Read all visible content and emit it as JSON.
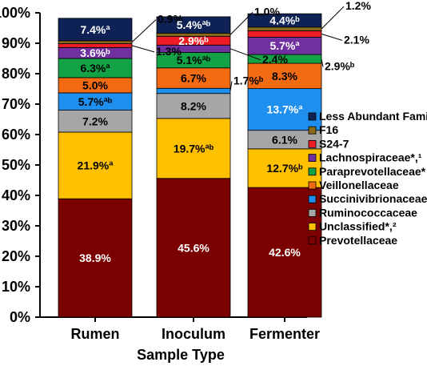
{
  "chart_data": {
    "type": "bar",
    "stacked": true,
    "xlabel": "Sample Type",
    "ylabel": "",
    "ylim": [
      0,
      100
    ],
    "y_ticks": [
      "0%",
      "10%",
      "20%",
      "30%",
      "40%",
      "50%",
      "60%",
      "70%",
      "80%",
      "90%",
      "100%"
    ],
    "categories": [
      "Rumen",
      "Inoculum",
      "Fermenter"
    ],
    "legend_position": "right",
    "series": [
      {
        "name": "Prevotellaceae",
        "color": "#7b0000",
        "values": [
          38.9,
          45.6,
          42.6
        ],
        "labels": [
          "38.9%",
          "45.6%",
          "42.6%"
        ],
        "label_color": "#ffffff"
      },
      {
        "name": "Unclassified*,²",
        "color": "#ffc000",
        "values": [
          21.9,
          19.7,
          12.7
        ],
        "labels": [
          "21.9%ª",
          "19.7%ªᵇ",
          "12.7%ᵇ"
        ],
        "label_color": "#000000"
      },
      {
        "name": "Ruminococcaceae",
        "color": "#a6a6a6",
        "values": [
          7.2,
          8.2,
          6.1
        ],
        "labels": [
          "7.2%",
          "8.2%",
          "6.1%"
        ],
        "label_color": "#000000"
      },
      {
        "name": "Succinivibrionaceae",
        "color": "#1f8fef",
        "values": [
          5.7,
          1.7,
          13.7
        ],
        "labels": [
          "5.7%ªᵇ",
          "1.7%ᵇ",
          "13.7%ª"
        ],
        "label_color": "#000000",
        "label_colors": [
          "#000000",
          "#000000",
          "#ffffff"
        ],
        "outside": [
          false,
          true,
          false
        ]
      },
      {
        "name": "Veillonellaceae",
        "color": "#f26b12",
        "values": [
          5.0,
          6.7,
          8.3
        ],
        "labels": [
          "5.0%",
          "6.7%",
          "8.3%"
        ],
        "label_color": "#000000",
        "outside": [
          false,
          false,
          false
        ]
      },
      {
        "name": "Paraprevotellaceae*",
        "color": "#13a346",
        "values": [
          6.3,
          5.1,
          2.9
        ],
        "labels": [
          "6.3%ª",
          "5.1%ªᵇ",
          "2.9%ᵇ"
        ],
        "label_color": "#000000",
        "outside": [
          false,
          false,
          true
        ]
      },
      {
        "name": "Lachnospiraceae*,¹",
        "color": "#7030a0",
        "values": [
          3.6,
          2.4,
          5.7
        ],
        "labels": [
          "3.6%ᵇ",
          "2.4%",
          "5.7%ª"
        ],
        "label_color": "#ffffff",
        "outside": [
          false,
          true,
          false
        ]
      },
      {
        "name": "S24-7",
        "color": "#ee1c25",
        "values": [
          1.3,
          2.9,
          2.1
        ],
        "labels": [
          "1.3%",
          "2.9%ᵇ",
          "2.1%"
        ],
        "label_color": "#ffffff",
        "outside": [
          true,
          false,
          true
        ]
      },
      {
        "name": "F16",
        "color": "#8a6d1c",
        "values": [
          0.9,
          1.0,
          1.2
        ],
        "labels": [
          "0.9%",
          "1.0%",
          "1.2%"
        ],
        "label_color": "#000000",
        "outside": [
          true,
          true,
          true
        ]
      },
      {
        "name": "Less Abundant Families",
        "color": "#0f2255",
        "values": [
          7.4,
          5.4,
          4.4
        ],
        "labels": [
          "7.4%ª",
          "5.4%ªᵇ",
          "4.4%ᵇ"
        ],
        "label_color": "#ffffff",
        "outside": [
          false,
          false,
          false
        ]
      }
    ]
  }
}
